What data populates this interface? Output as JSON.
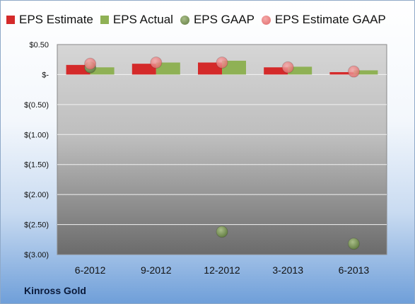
{
  "chart_data": {
    "type": "bar",
    "categories": [
      "6-2012",
      "9-2012",
      "12-2012",
      "3-2013",
      "6-2013"
    ],
    "series": [
      {
        "name": "EPS Estimate",
        "kind": "bar",
        "color": "#d42a2a",
        "values": [
          0.16,
          0.18,
          0.2,
          0.12,
          0.04
        ]
      },
      {
        "name": "EPS Actual",
        "kind": "bar",
        "color": "#8fb155",
        "values": [
          0.12,
          0.2,
          0.23,
          0.13,
          0.07
        ]
      },
      {
        "name": "EPS GAAP",
        "kind": "scatter",
        "color": "#7a9455",
        "values": [
          0.12,
          null,
          -2.62,
          null,
          -2.82
        ]
      },
      {
        "name": "EPS Estimate GAAP",
        "kind": "scatter",
        "color": "#e66d6d",
        "values": [
          0.18,
          0.2,
          0.2,
          0.12,
          0.05
        ]
      }
    ],
    "yticks": [
      {
        "value": 0.5,
        "label": "$0.50"
      },
      {
        "value": 0,
        "label": "$-"
      },
      {
        "value": -0.5,
        "label": "$(0.50)"
      },
      {
        "value": -1.0,
        "label": "$(1.00)"
      },
      {
        "value": -1.5,
        "label": "$(1.50)"
      },
      {
        "value": -2.0,
        "label": "$(2.00)"
      },
      {
        "value": -2.5,
        "label": "$(2.50)"
      },
      {
        "value": -3.0,
        "label": "$(3.00)"
      }
    ],
    "ylim": [
      -3.0,
      0.5
    ],
    "grid": true,
    "legend_position": "top"
  },
  "company": "Kinross Gold"
}
